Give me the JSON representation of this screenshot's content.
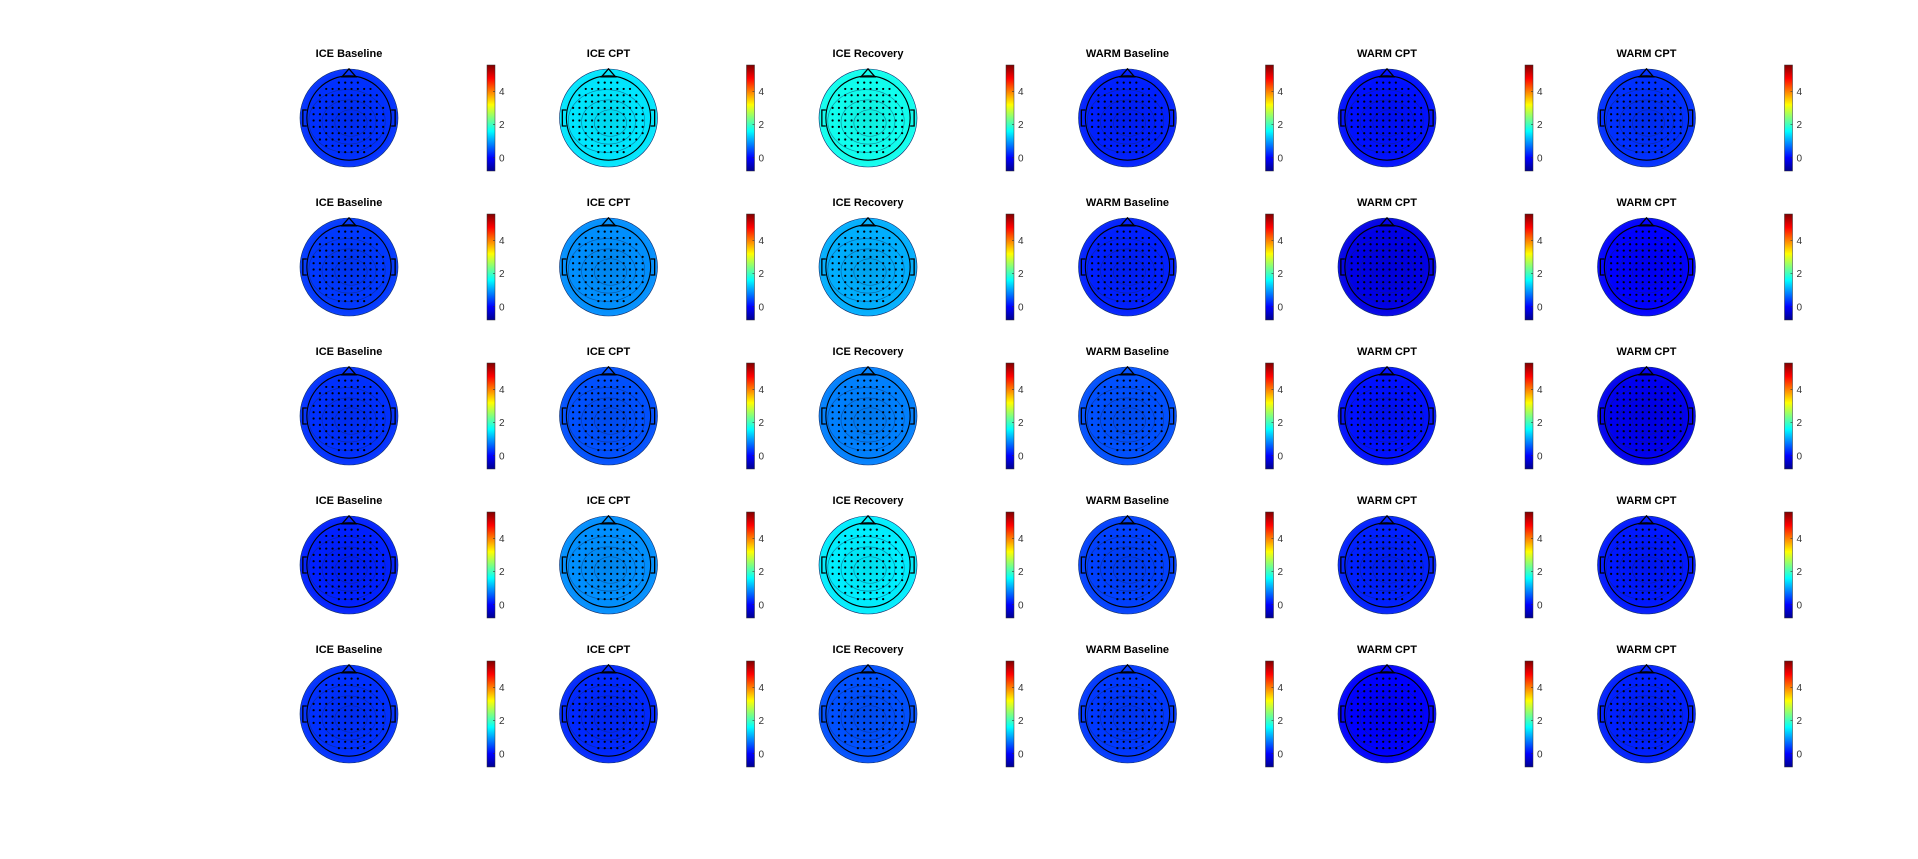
{
  "figure": {
    "rows": 5,
    "columns": 6,
    "column_titles": [
      "ICE Baseline",
      "ICE CPT",
      "ICE Recovery",
      "WARM Baseline",
      "WARM CPT",
      "WARM CPT"
    ]
  },
  "chart_data": {
    "type": "heatmap",
    "subtype": "eeg-topoplot-grid",
    "colormap": "jet",
    "colorbar": {
      "range": [
        -0.8,
        5.6
      ],
      "ticks": [
        0,
        2,
        4
      ],
      "tick_labels": [
        "0",
        "2",
        "4"
      ],
      "placement": "right of each map"
    },
    "panel_mean_values": [
      [
        0.3,
        1.45,
        1.7,
        0.2,
        0.1,
        0.3
      ],
      [
        0.35,
        0.9,
        1.1,
        0.2,
        -0.15,
        0.0
      ],
      [
        0.3,
        0.5,
        0.8,
        0.5,
        0.1,
        -0.1
      ],
      [
        0.2,
        0.9,
        1.5,
        0.4,
        0.2,
        0.15
      ],
      [
        0.3,
        0.25,
        0.5,
        0.35,
        0.0,
        0.2
      ]
    ]
  }
}
